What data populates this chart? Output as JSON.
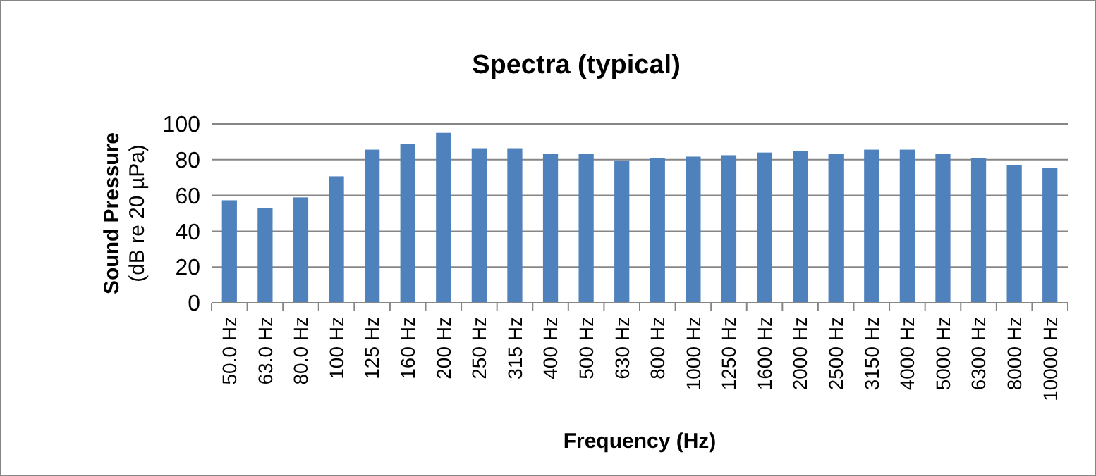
{
  "chart_data": {
    "type": "bar",
    "title": "Spectra (typical)",
    "xlabel": "Frequency (Hz)",
    "ylabel": "Sound Pressure\n(dB re 20 µPa)",
    "categories": [
      "50.0 Hz",
      "63.0 Hz",
      "80.0 Hz",
      "100 Hz",
      "125 Hz",
      "160 Hz",
      "200 Hz",
      "250 Hz",
      "315 Hz",
      "400 Hz",
      "500 Hz",
      "630 Hz",
      "800 Hz",
      "1000 Hz",
      "1250 Hz",
      "1600 Hz",
      "2000 Hz",
      "2500 Hz",
      "3150 Hz",
      "4000 Hz",
      "5000 Hz",
      "6300 Hz",
      "8000 Hz",
      "10000 Hz"
    ],
    "values": [
      57.3,
      52.9,
      58.9,
      70.7,
      85.6,
      88.7,
      95,
      86.4,
      86.4,
      83.2,
      83.2,
      79.6,
      80.9,
      81.7,
      82.5,
      84,
      84.8,
      83.2,
      85.6,
      85.6,
      83.2,
      80.9,
      77,
      75.4
    ],
    "color": "#4f81bd",
    "ylim": [
      0,
      100
    ],
    "yticks": [
      0,
      20,
      40,
      60,
      80,
      100
    ],
    "grid": "y"
  }
}
